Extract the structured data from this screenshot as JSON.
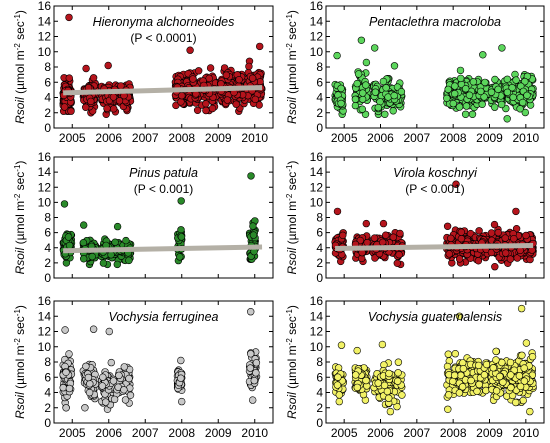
{
  "ylabel": {
    "variable": "Rsoil",
    "units_open": " (µmol m",
    "units_exp1": "-2",
    "units_mid": " sec",
    "units_exp2": "-1",
    "units_close": ")"
  },
  "colors": {
    "red": "#b5141c",
    "green_light": "#5cd65c",
    "green_dark": "#2a8a2a",
    "gray": "#c8c8c8",
    "yellow": "#f2f266",
    "trend": "#b4b0a6"
  },
  "chart_data": [
    {
      "type": "scatter",
      "title": "Hieronyma alchorneoides",
      "annotation": "(P < 0.0001)",
      "color": "red",
      "xlim": [
        2004.5,
        2010.5
      ],
      "ylim": [
        0,
        16
      ],
      "xticks": [
        "2005",
        "2006",
        "2007",
        "2008",
        "2009",
        "2010"
      ],
      "yticks": [
        "0",
        "2",
        "4",
        "6",
        "8",
        "10",
        "12",
        "14",
        "16"
      ],
      "show_x_labels": true,
      "trend": {
        "x": [
          2004.75,
          2010.2
        ],
        "y": [
          4.6,
          5.3
        ]
      },
      "clusters": [
        {
          "start": 2004.75,
          "end": 2004.98,
          "mean": 4.4,
          "spread": 1.8,
          "min": 2.2,
          "max": 14.5,
          "n": 90
        },
        {
          "start": 2005.3,
          "end": 2005.65,
          "mean": 4.5,
          "spread": 1.4,
          "min": 2.0,
          "max": 7.8,
          "n": 80
        },
        {
          "start": 2005.8,
          "end": 2006.6,
          "mean": 4.3,
          "spread": 1.3,
          "min": 1.8,
          "max": 8.2,
          "n": 160
        },
        {
          "start": 2007.82,
          "end": 2008.95,
          "mean": 5.1,
          "spread": 1.6,
          "min": 2.3,
          "max": 10.2,
          "n": 260
        },
        {
          "start": 2009.05,
          "end": 2010.2,
          "mean": 5.3,
          "spread": 1.7,
          "min": 2.2,
          "max": 10.7,
          "n": 280
        }
      ]
    },
    {
      "type": "scatter",
      "title": "Pentaclethra macroloba",
      "annotation": "",
      "color": "green_light",
      "xlim": [
        2004.5,
        2010.5
      ],
      "ylim": [
        0,
        16
      ],
      "xticks": [
        "2005",
        "2006",
        "2007",
        "2008",
        "2009",
        "2010"
      ],
      "yticks": [
        "0",
        "2",
        "4",
        "6",
        "8",
        "10",
        "12",
        "14",
        "16"
      ],
      "show_x_labels": true,
      "trend": null,
      "clusters": [
        {
          "start": 2004.75,
          "end": 2004.98,
          "mean": 4.2,
          "spread": 1.5,
          "min": 1.8,
          "max": 9.5,
          "n": 50
        },
        {
          "start": 2005.3,
          "end": 2005.65,
          "mean": 5.0,
          "spread": 2.0,
          "min": 1.8,
          "max": 11.5,
          "n": 60
        },
        {
          "start": 2005.8,
          "end": 2006.6,
          "mean": 4.5,
          "spread": 1.6,
          "min": 1.8,
          "max": 10.5,
          "n": 110
        },
        {
          "start": 2007.82,
          "end": 2008.95,
          "mean": 4.6,
          "spread": 1.5,
          "min": 1.8,
          "max": 9.6,
          "n": 200
        },
        {
          "start": 2009.05,
          "end": 2010.2,
          "mean": 4.6,
          "spread": 1.5,
          "min": 1.2,
          "max": 10.5,
          "n": 230
        }
      ]
    },
    {
      "type": "scatter",
      "title": "Pinus patula",
      "annotation": "(P < 0.001)",
      "color": "green_dark",
      "xlim": [
        2004.5,
        2010.5
      ],
      "ylim": [
        0,
        16
      ],
      "xticks": [
        "2005",
        "2006",
        "2007",
        "2008",
        "2009",
        "2010"
      ],
      "yticks": [
        "0",
        "2",
        "4",
        "6",
        "8",
        "10",
        "12",
        "14",
        "16"
      ],
      "show_x_labels": false,
      "trend": {
        "x": [
          2004.75,
          2010.2
        ],
        "y": [
          3.6,
          4.1
        ]
      },
      "clusters": [
        {
          "start": 2004.75,
          "end": 2004.98,
          "mean": 4.3,
          "spread": 1.5,
          "min": 2.0,
          "max": 9.8,
          "n": 60
        },
        {
          "start": 2005.3,
          "end": 2005.65,
          "mean": 3.7,
          "spread": 1.2,
          "min": 1.8,
          "max": 7.0,
          "n": 60
        },
        {
          "start": 2005.8,
          "end": 2006.6,
          "mean": 3.6,
          "spread": 1.1,
          "min": 1.8,
          "max": 6.8,
          "n": 110
        },
        {
          "start": 2007.88,
          "end": 2008.0,
          "mean": 4.6,
          "spread": 1.6,
          "min": 2.3,
          "max": 10.2,
          "n": 35
        },
        {
          "start": 2009.85,
          "end": 2010.02,
          "mean": 5.0,
          "spread": 2.2,
          "min": 2.5,
          "max": 13.5,
          "n": 45
        }
      ]
    },
    {
      "type": "scatter",
      "title": "Virola koschnyi",
      "annotation": "(P < 0.001)",
      "color": "red",
      "xlim": [
        2004.5,
        2010.5
      ],
      "ylim": [
        0,
        16
      ],
      "xticks": [
        "2005",
        "2006",
        "2007",
        "2008",
        "2009",
        "2010"
      ],
      "yticks": [
        "0",
        "2",
        "4",
        "6",
        "8",
        "10",
        "12",
        "14",
        "16"
      ],
      "show_x_labels": false,
      "trend": {
        "x": [
          2004.75,
          2010.2
        ],
        "y": [
          3.9,
          4.3
        ]
      },
      "clusters": [
        {
          "start": 2004.75,
          "end": 2004.98,
          "mean": 4.3,
          "spread": 1.3,
          "min": 2.2,
          "max": 8.8,
          "n": 60
        },
        {
          "start": 2005.3,
          "end": 2005.65,
          "mean": 4.2,
          "spread": 1.1,
          "min": 2.2,
          "max": 7.2,
          "n": 70
        },
        {
          "start": 2005.8,
          "end": 2006.6,
          "mean": 4.1,
          "spread": 1.2,
          "min": 1.8,
          "max": 7.2,
          "n": 140
        },
        {
          "start": 2007.82,
          "end": 2008.95,
          "mean": 4.3,
          "spread": 1.3,
          "min": 2.0,
          "max": 12.4,
          "n": 220
        },
        {
          "start": 2009.05,
          "end": 2010.2,
          "mean": 4.4,
          "spread": 1.3,
          "min": 1.5,
          "max": 8.8,
          "n": 240
        }
      ]
    },
    {
      "type": "scatter",
      "title": "Vochysia ferruginea",
      "annotation": "",
      "color": "gray",
      "xlim": [
        2004.5,
        2010.5
      ],
      "ylim": [
        0,
        16
      ],
      "xticks": [
        "2005",
        "2006",
        "2007",
        "2008",
        "2009",
        "2010"
      ],
      "yticks": [
        "0",
        "2",
        "4",
        "6",
        "8",
        "10",
        "12",
        "14",
        "16"
      ],
      "show_x_labels": true,
      "trend": null,
      "clusters": [
        {
          "start": 2004.75,
          "end": 2004.98,
          "mean": 5.6,
          "spread": 2.2,
          "min": 2.0,
          "max": 12.2,
          "n": 60
        },
        {
          "start": 2005.3,
          "end": 2005.65,
          "mean": 5.4,
          "spread": 2.0,
          "min": 2.0,
          "max": 12.3,
          "n": 60
        },
        {
          "start": 2005.8,
          "end": 2006.6,
          "mean": 5.0,
          "spread": 1.7,
          "min": 1.8,
          "max": 12.0,
          "n": 110
        },
        {
          "start": 2007.88,
          "end": 2008.0,
          "mean": 5.5,
          "spread": 1.2,
          "min": 2.8,
          "max": 8.2,
          "n": 40
        },
        {
          "start": 2009.85,
          "end": 2010.05,
          "mean": 6.8,
          "spread": 1.9,
          "min": 3.0,
          "max": 14.6,
          "n": 55
        }
      ]
    },
    {
      "type": "scatter",
      "title": "Vochysia guatemalensis",
      "annotation": "",
      "color": "yellow",
      "xlim": [
        2004.5,
        2010.5
      ],
      "ylim": [
        0,
        16
      ],
      "xticks": [
        "2005",
        "2006",
        "2007",
        "2008",
        "2009",
        "2010"
      ],
      "yticks": [
        "0",
        "2",
        "4",
        "6",
        "8",
        "10",
        "12",
        "14",
        "16"
      ],
      "show_x_labels": true,
      "trend": null,
      "clusters": [
        {
          "start": 2004.75,
          "end": 2004.98,
          "mean": 5.5,
          "spread": 1.5,
          "min": 2.8,
          "max": 10.2,
          "n": 50
        },
        {
          "start": 2005.3,
          "end": 2005.65,
          "mean": 5.8,
          "spread": 1.3,
          "min": 3.0,
          "max": 9.5,
          "n": 60
        },
        {
          "start": 2005.8,
          "end": 2006.6,
          "mean": 4.9,
          "spread": 1.8,
          "min": 1.5,
          "max": 10.3,
          "n": 110
        },
        {
          "start": 2007.82,
          "end": 2008.95,
          "mean": 6.0,
          "spread": 2.0,
          "min": 1.8,
          "max": 14.0,
          "n": 200
        },
        {
          "start": 2009.05,
          "end": 2010.2,
          "mean": 5.9,
          "spread": 2.0,
          "min": 1.5,
          "max": 15.0,
          "n": 230
        }
      ]
    }
  ]
}
